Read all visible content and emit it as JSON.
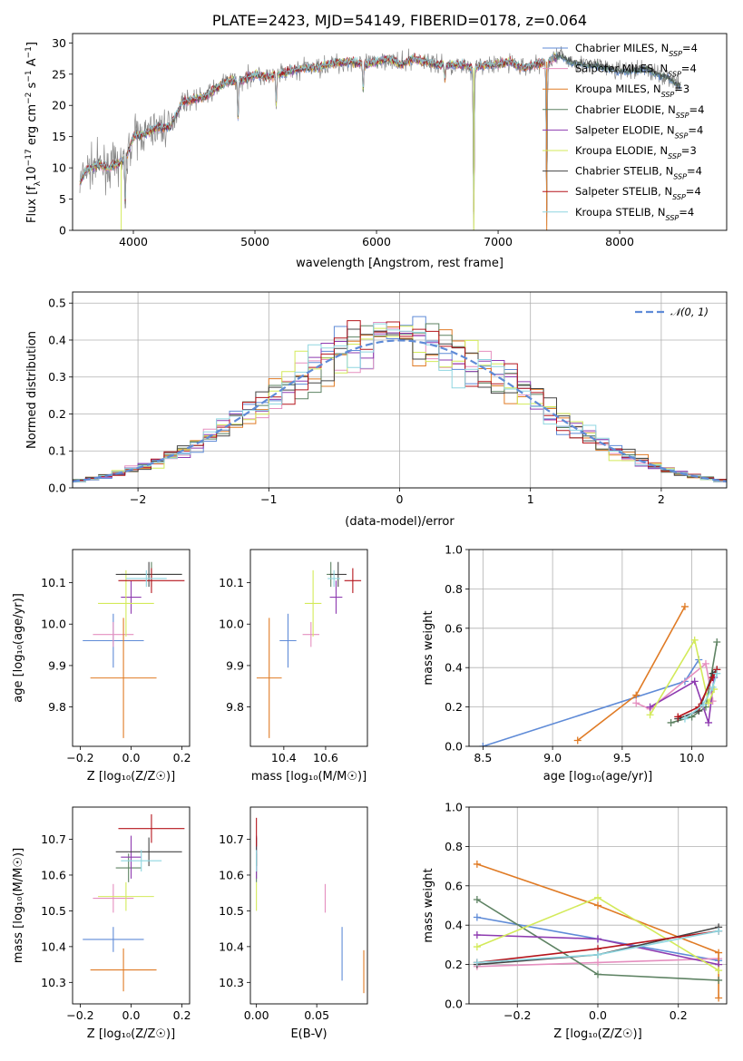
{
  "colors": {
    "Chabrier MILES": "#5f8bd7",
    "Salpeter MILES": "#e58fbf",
    "Kroupa MILES": "#e07b25",
    "Chabrier ELODIE": "#5d8262",
    "Salpeter ELODIE": "#8e3bb0",
    "Kroupa ELODIE": "#d3ea5a",
    "Chabrier STELIB": "#444444",
    "Salpeter STELIB": "#b5151c",
    "Kroupa STELIB": "#8fd6e0",
    "data": "#888888",
    "gauss": "#5f8bd7"
  },
  "chart_data": [
    {
      "id": "spectrum",
      "type": "line",
      "title": "PLATE=2423, MJD=54149, FIBERID=0178, z=0.064",
      "xlabel": "wavelength [Angstrom, rest frame]",
      "ylabel": "Flux [f_λ10⁻¹⁷ erg cm⁻² s⁻¹ A⁻¹]",
      "xlim": [
        3500,
        8880
      ],
      "ylim": [
        0,
        31.5
      ],
      "xticks": [
        4000,
        5000,
        6000,
        7000,
        8000
      ],
      "yticks": [
        0,
        5,
        10,
        15,
        20,
        25,
        30
      ],
      "grid": false,
      "legend_position": "right",
      "legend": [
        {
          "model": "Chabrier MILES",
          "n_ssp": "4"
        },
        {
          "model": "Salpeter MILES",
          "n_ssp": "4"
        },
        {
          "model": "Kroupa MILES",
          "n_ssp": "3"
        },
        {
          "model": "Chabrier ELODIE",
          "n_ssp": "4"
        },
        {
          "model": "Salpeter ELODIE",
          "n_ssp": "4"
        },
        {
          "model": "Kroupa ELODIE",
          "n_ssp": "3"
        },
        {
          "model": "Chabrier STELIB",
          "n_ssp": "4"
        },
        {
          "model": "Salpeter STELIB",
          "n_ssp": "4"
        },
        {
          "model": "Kroupa STELIB",
          "n_ssp": "4"
        }
      ],
      "continuum": {
        "x": [
          3560,
          3600,
          3700,
          3800,
          3900,
          3950,
          4000,
          4100,
          4200,
          4300,
          4400,
          4500,
          4600,
          4700,
          4800,
          4900,
          5000,
          5100,
          5200,
          5300,
          5400,
          5500,
          5600,
          5700,
          5800,
          5900,
          6000,
          6100,
          6200,
          6300,
          6400,
          6500,
          6600,
          6700,
          6800,
          6900,
          7000,
          7100,
          7200,
          7300,
          7400,
          7500,
          7600,
          7700,
          7800,
          7900,
          8000,
          8100,
          8200,
          8300,
          8400,
          8500
        ],
        "y": [
          7.5,
          9.5,
          10.5,
          10.0,
          11.0,
          12.0,
          15.0,
          15.5,
          16.5,
          16.5,
          20.5,
          21.0,
          21.5,
          23.0,
          24.0,
          24.0,
          25.0,
          24.5,
          25.0,
          25.5,
          26.0,
          26.0,
          26.5,
          26.8,
          27.0,
          26.5,
          27.0,
          27.5,
          26.5,
          27.5,
          27.0,
          26.5,
          26.5,
          26.5,
          26.0,
          26.5,
          26.5,
          27.0,
          26.0,
          26.5,
          27.0,
          28.0,
          27.0,
          26.5,
          26.5,
          26.0,
          25.5,
          25.5,
          26.0,
          25.0,
          24.5,
          23.0
        ]
      },
      "dips": [
        {
          "x": 3933,
          "y": 3.5
        },
        {
          "x": 4861,
          "y": 17.0
        },
        {
          "x": 5175,
          "y": 19.5
        },
        {
          "x": 5890,
          "y": 22.0
        },
        {
          "x": 6563,
          "y": 24.0
        },
        {
          "x": 6800,
          "y": 0.0
        },
        {
          "x": 7400,
          "y": 0.0
        }
      ]
    },
    {
      "id": "residuals",
      "type": "histogram",
      "xlabel": "(data-model)/error",
      "ylabel": "Normed distribution",
      "xlim": [
        -2.5,
        2.5
      ],
      "ylim": [
        0,
        0.53
      ],
      "xticks": [
        -2,
        -1,
        0,
        1,
        2
      ],
      "yticks": [
        0.0,
        0.1,
        0.2,
        0.3,
        0.4,
        0.5
      ],
      "grid": true,
      "legend_position": "upper right",
      "reference_curve": "𝒩(0, 1)",
      "bin_width": 0.1,
      "bin_start": -2.5
    },
    {
      "id": "age_vs_Z",
      "type": "errorbar",
      "xlabel": "Z [log₁₀(Z/Z☉)]",
      "ylabel": "age  [log₁₀(age/yr)]",
      "xlim": [
        -0.23,
        0.23
      ],
      "ylim": [
        9.705,
        10.18
      ],
      "xticks": [
        -0.2,
        0.0,
        0.2
      ],
      "yticks": [
        9.8,
        9.9,
        10.0,
        10.1
      ],
      "points": [
        {
          "model": "Chabrier MILES",
          "x": -0.07,
          "y": 9.96,
          "xerr": 0.12,
          "yerr": 0.065
        },
        {
          "model": "Salpeter MILES",
          "x": -0.07,
          "y": 9.975,
          "xerr": 0.08,
          "yerr": 0.03
        },
        {
          "model": "Kroupa MILES",
          "x": -0.03,
          "y": 9.87,
          "xerr": 0.13,
          "yerr": 0.145
        },
        {
          "model": "Chabrier ELODIE",
          "x": 0.08,
          "y": 10.12,
          "xerr": 0.12,
          "yerr": 0.03
        },
        {
          "model": "Salpeter ELODIE",
          "x": 0.0,
          "y": 10.065,
          "xerr": 0.04,
          "yerr": 0.04
        },
        {
          "model": "Kroupa ELODIE",
          "x": -0.02,
          "y": 10.05,
          "xerr": 0.11,
          "yerr": 0.08
        },
        {
          "model": "Chabrier STELIB",
          "x": 0.07,
          "y": 10.12,
          "xerr": 0.13,
          "yerr": 0.03
        },
        {
          "model": "Salpeter STELIB",
          "x": 0.08,
          "y": 10.105,
          "xerr": 0.13,
          "yerr": 0.03
        },
        {
          "model": "Kroupa STELIB",
          "x": 0.06,
          "y": 10.11,
          "xerr": 0.08,
          "yerr": 0.02
        }
      ]
    },
    {
      "id": "age_vs_mass",
      "type": "errorbar",
      "xlabel": "mass [log₁₀(M/M☉)]",
      "ylabel": "",
      "xlim": [
        10.24,
        10.8
      ],
      "ylim": [
        9.705,
        10.18
      ],
      "xticks": [
        10.4,
        10.6
      ],
      "yticks": [
        9.8,
        9.9,
        10.0,
        10.1
      ],
      "points": [
        {
          "model": "Chabrier MILES",
          "x": 10.42,
          "y": 9.96,
          "xerr": 0.04,
          "yerr": 0.065
        },
        {
          "model": "Salpeter MILES",
          "x": 10.53,
          "y": 9.975,
          "xerr": 0.04,
          "yerr": 0.03
        },
        {
          "model": "Kroupa MILES",
          "x": 10.33,
          "y": 9.87,
          "xerr": 0.06,
          "yerr": 0.145
        },
        {
          "model": "Chabrier ELODIE",
          "x": 10.625,
          "y": 10.12,
          "xerr": 0.02,
          "yerr": 0.03
        },
        {
          "model": "Salpeter ELODIE",
          "x": 10.65,
          "y": 10.065,
          "xerr": 0.03,
          "yerr": 0.04
        },
        {
          "model": "Kroupa ELODIE",
          "x": 10.54,
          "y": 10.05,
          "xerr": 0.04,
          "yerr": 0.08
        },
        {
          "model": "Chabrier STELIB",
          "x": 10.66,
          "y": 10.12,
          "xerr": 0.04,
          "yerr": 0.03
        },
        {
          "model": "Salpeter STELIB",
          "x": 10.73,
          "y": 10.105,
          "xerr": 0.04,
          "yerr": 0.03
        },
        {
          "model": "Kroupa STELIB",
          "x": 10.64,
          "y": 10.11,
          "xerr": 0.03,
          "yerr": 0.02
        }
      ]
    },
    {
      "id": "mass_weight_vs_age",
      "type": "line",
      "xlabel": "age  [log₁₀(age/yr)]",
      "ylabel": "mass weight",
      "xlim": [
        8.4,
        10.25
      ],
      "ylim": [
        0,
        1
      ],
      "xticks": [
        8.5,
        9.0,
        9.5,
        10.0
      ],
      "yticks": [
        0.0,
        0.2,
        0.4,
        0.6,
        0.8,
        1.0
      ],
      "grid": true,
      "series": [
        {
          "model": "Chabrier MILES",
          "x": [
            8.5,
            9.95,
            10.05
          ],
          "y": [
            0.0,
            0.33,
            0.44
          ]
        },
        {
          "model": "Salpeter MILES",
          "x": [
            9.6,
            9.7,
            10.1,
            10.15
          ],
          "y": [
            0.22,
            0.19,
            0.42,
            0.23
          ]
        },
        {
          "model": "Kroupa MILES",
          "x": [
            9.18,
            9.6,
            9.95
          ],
          "y": [
            0.03,
            0.26,
            0.71
          ]
        },
        {
          "model": "Chabrier ELODIE",
          "x": [
            9.85,
            10.0,
            10.1,
            10.18
          ],
          "y": [
            0.12,
            0.15,
            0.2,
            0.53
          ]
        },
        {
          "model": "Salpeter ELODIE",
          "x": [
            9.7,
            10.02,
            10.12,
            10.16
          ],
          "y": [
            0.2,
            0.33,
            0.12,
            0.35
          ]
        },
        {
          "model": "Kroupa ELODIE",
          "x": [
            9.7,
            10.02,
            10.12,
            10.16
          ],
          "y": [
            0.16,
            0.54,
            0.22,
            0.29
          ]
        },
        {
          "model": "Chabrier STELIB",
          "x": [
            9.9,
            10.05,
            10.15,
            10.18
          ],
          "y": [
            0.14,
            0.18,
            0.37,
            0.39
          ]
        },
        {
          "model": "Salpeter STELIB",
          "x": [
            9.9,
            10.05,
            10.15,
            10.18
          ],
          "y": [
            0.15,
            0.2,
            0.35,
            0.39
          ]
        },
        {
          "model": "Kroupa STELIB",
          "x": [
            9.95,
            10.08,
            10.15,
            10.18
          ],
          "y": [
            0.14,
            0.21,
            0.3,
            0.37
          ]
        }
      ]
    },
    {
      "id": "mass_vs_Z",
      "type": "errorbar",
      "xlabel": "Z [log₁₀(Z/Z☉)]",
      "ylabel": "mass [log₁₀(M/M☉)]",
      "xlim": [
        -0.23,
        0.23
      ],
      "ylim": [
        10.24,
        10.79
      ],
      "xticks": [
        -0.2,
        0.0,
        0.2
      ],
      "yticks": [
        10.3,
        10.4,
        10.5,
        10.6,
        10.7
      ],
      "points": [
        {
          "model": "Chabrier MILES",
          "x": -0.07,
          "y": 10.42,
          "xerr": 0.12,
          "yerr": 0.035
        },
        {
          "model": "Salpeter MILES",
          "x": -0.07,
          "y": 10.535,
          "xerr": 0.08,
          "yerr": 0.04
        },
        {
          "model": "Kroupa MILES",
          "x": -0.03,
          "y": 10.335,
          "xerr": 0.13,
          "yerr": 0.06
        },
        {
          "model": "Chabrier ELODIE",
          "x": -0.01,
          "y": 10.62,
          "xerr": 0.05,
          "yerr": 0.04
        },
        {
          "model": "Salpeter ELODIE",
          "x": 0.0,
          "y": 10.65,
          "xerr": 0.04,
          "yerr": 0.06
        },
        {
          "model": "Kroupa ELODIE",
          "x": -0.02,
          "y": 10.54,
          "xerr": 0.11,
          "yerr": 0.04
        },
        {
          "model": "Chabrier STELIB",
          "x": 0.07,
          "y": 10.665,
          "xerr": 0.13,
          "yerr": 0.04
        },
        {
          "model": "Salpeter STELIB",
          "x": 0.08,
          "y": 10.73,
          "xerr": 0.13,
          "yerr": 0.04
        },
        {
          "model": "Kroupa STELIB",
          "x": 0.04,
          "y": 10.64,
          "xerr": 0.08,
          "yerr": 0.03
        }
      ]
    },
    {
      "id": "mass_vs_ebv",
      "type": "errorbar",
      "xlabel": "E(B-V)",
      "ylabel": "",
      "xlim": [
        -0.005,
        0.092
      ],
      "ylim": [
        10.24,
        10.79
      ],
      "xticks": [
        0.0,
        0.05
      ],
      "yticks": [
        10.3,
        10.4,
        10.5,
        10.6,
        10.7
      ],
      "points": [
        {
          "model": "Chabrier MILES",
          "x": 0.071,
          "y": 10.38,
          "xerr": 0,
          "yerr": 0.075
        },
        {
          "model": "Salpeter MILES",
          "x": 0.057,
          "y": 10.535,
          "xerr": 0,
          "yerr": 0.04
        },
        {
          "model": "Kroupa MILES",
          "x": 0.089,
          "y": 10.33,
          "xerr": 0,
          "yerr": 0.06
        },
        {
          "model": "Chabrier ELODIE",
          "x": 0.0,
          "y": 10.62,
          "xerr": 0,
          "yerr": 0.04
        },
        {
          "model": "Salpeter ELODIE",
          "x": 0.0,
          "y": 10.65,
          "xerr": 0,
          "yerr": 0.06
        },
        {
          "model": "Kroupa ELODIE",
          "x": 0.0,
          "y": 10.54,
          "xerr": 0,
          "yerr": 0.04
        },
        {
          "model": "Chabrier STELIB",
          "x": 0.0,
          "y": 10.665,
          "xerr": 0,
          "yerr": 0.04
        },
        {
          "model": "Salpeter STELIB",
          "x": 0.0,
          "y": 10.72,
          "xerr": 0,
          "yerr": 0.04
        },
        {
          "model": "Kroupa STELIB",
          "x": 0.0,
          "y": 10.64,
          "xerr": 0,
          "yerr": 0.03
        }
      ]
    },
    {
      "id": "mass_weight_vs_Z",
      "type": "line",
      "xlabel": "Z [log₁₀(Z/Z☉)]",
      "ylabel": "mass weight",
      "xlim": [
        -0.32,
        0.32
      ],
      "ylim": [
        0,
        1
      ],
      "xticks": [
        -0.2,
        0.0,
        0.2
      ],
      "yticks": [
        0.0,
        0.2,
        0.4,
        0.6,
        0.8,
        1.0
      ],
      "grid": true,
      "series": [
        {
          "model": "Chabrier MILES",
          "x": [
            -0.3,
            0.0,
            0.3
          ],
          "y": [
            0.44,
            0.33,
            0.22
          ]
        },
        {
          "model": "Salpeter MILES",
          "x": [
            -0.3,
            0.0,
            0.3
          ],
          "y": [
            0.19,
            0.21,
            0.23
          ]
        },
        {
          "model": "Kroupa MILES",
          "x": [
            -0.3,
            0.0,
            0.3,
            0.3
          ],
          "y": [
            0.71,
            0.5,
            0.26,
            0.03
          ]
        },
        {
          "model": "Chabrier ELODIE",
          "x": [
            -0.3,
            0.0,
            0.3
          ],
          "y": [
            0.53,
            0.15,
            0.12
          ]
        },
        {
          "model": "Salpeter ELODIE",
          "x": [
            -0.3,
            0.0,
            0.3
          ],
          "y": [
            0.35,
            0.33,
            0.2
          ]
        },
        {
          "model": "Kroupa ELODIE",
          "x": [
            -0.3,
            0.0,
            0.3
          ],
          "y": [
            0.29,
            0.54,
            0.17
          ]
        },
        {
          "model": "Chabrier STELIB",
          "x": [
            -0.3,
            0.0,
            0.3
          ],
          "y": [
            0.2,
            0.25,
            0.39
          ]
        },
        {
          "model": "Salpeter STELIB",
          "x": [
            -0.3,
            0.0,
            0.3
          ],
          "y": [
            0.21,
            0.28,
            0.37
          ]
        },
        {
          "model": "Kroupa STELIB",
          "x": [
            -0.3,
            0.0,
            0.3
          ],
          "y": [
            0.21,
            0.25,
            0.37
          ]
        }
      ]
    }
  ]
}
